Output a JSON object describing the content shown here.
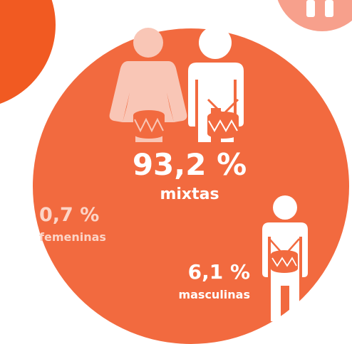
{
  "stats": [
    {
      "value": "93,2 %",
      "label": "mixtas"
    },
    {
      "value": "0,7 %",
      "label": "femeninas"
    },
    {
      "value": "6,1 %",
      "label": "masculinas"
    }
  ]
}
